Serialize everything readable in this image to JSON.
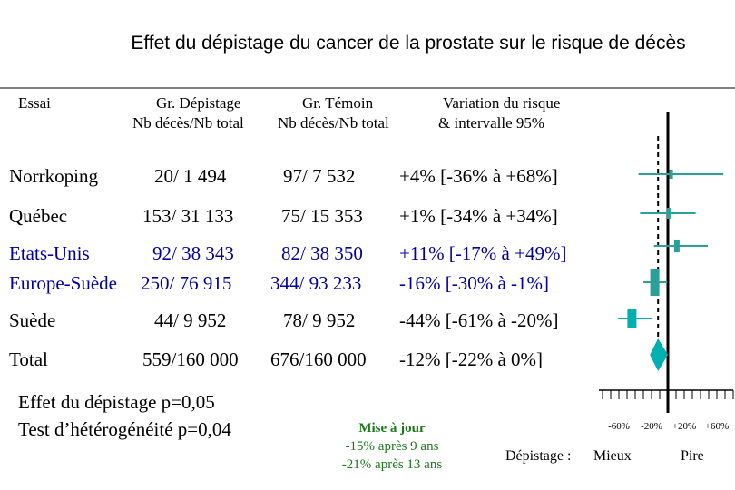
{
  "chart_data": {
    "type": "forest",
    "title": "Effet du dépistage du cancer de la prostate sur le risque de décès",
    "columns": {
      "trial": "Essai",
      "screening_line1": "Gr. Dépistage",
      "screening_line2": "Nb décès/Nb total",
      "control_line1": "Gr. Témoin",
      "control_line2": "Nb décès/Nb total",
      "variation_line1": "Variation du risque",
      "variation_line2": "& intervalle 95%"
    },
    "rows": [
      {
        "name": "Norrkoping",
        "screen": "20/   1 494",
        "control": "97/   7 532",
        "ci_text": "+4% [-36% à +68%]",
        "est": 4,
        "lo": -36,
        "hi": 68,
        "color": "#000000",
        "marker_color": "#2aa198"
      },
      {
        "name": "Québec",
        "screen": "153/ 31 133",
        "control": "75/ 15 353",
        "ci_text": "+1% [-34% à +34%]",
        "est": 1,
        "lo": -34,
        "hi": 34,
        "color": "#000000",
        "marker_color": "#2aa198"
      },
      {
        "name": "Etats-Unis",
        "screen": "92/ 38 343",
        "control": "82/ 38 350",
        "ci_text": "+11% [-17% à +49%]",
        "est": 11,
        "lo": -17,
        "hi": 49,
        "color": "#0000a0",
        "marker_color": "#2aa198"
      },
      {
        "name": "Europe-Suède",
        "screen": "250/ 76 915",
        "control": "344/ 93 233",
        "ci_text": "-16% [-30% à -1%]",
        "est": -16,
        "lo": -30,
        "hi": -1,
        "color": "#0000a0",
        "marker_color": "#2aa198"
      },
      {
        "name": "Suède",
        "screen": "44/   9 952",
        "control": "78/   9 952",
        "ci_text": "-44% [-61% à -20%]",
        "est": -44,
        "lo": -61,
        "hi": -20,
        "color": "#000000",
        "marker_color": "#00b0b0"
      },
      {
        "name": "Total",
        "screen": "559/160 000",
        "control": "676/160 000",
        "ci_text": "-12% [-22% à 0%]",
        "est": -12,
        "lo": -22,
        "hi": 0,
        "color": "#000000",
        "marker_color": "#00b0b0"
      }
    ],
    "x_ticks": [
      "-60%",
      "-20%",
      "+20%",
      "+60%"
    ],
    "x_tick_values": [
      -60,
      -20,
      20,
      60
    ],
    "xlim": [
      -90,
      90
    ],
    "axis_labels": {
      "left": "Dépistage :",
      "mieux": "Mieux",
      "pire": "Pire"
    },
    "pooled_reference": -12
  },
  "footer": {
    "effect": "Effet du dépistage   p=0,05",
    "heterogeneity": "Test d’hétérogénéité p=0,04"
  },
  "update": {
    "line1": "Mise à jour",
    "line2": "-15% après 9 ans",
    "line3": "-21% après 13 ans"
  }
}
